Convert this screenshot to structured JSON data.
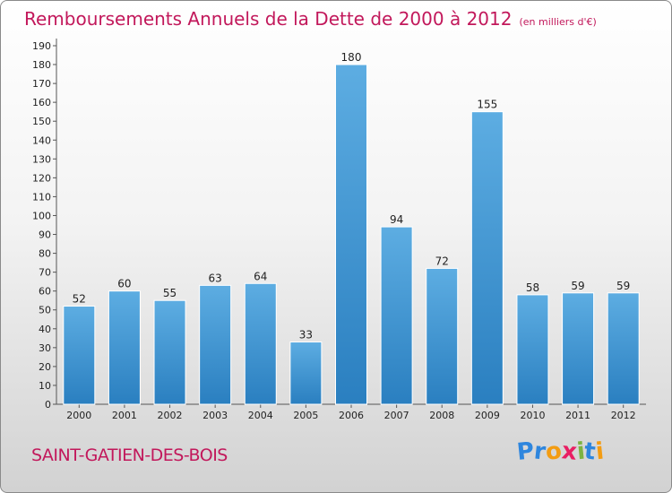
{
  "chart_data": {
    "type": "bar",
    "title": "Remboursements Annuels de la Dette de 2000 à 2012",
    "subtitle": "(en milliers d'€)",
    "categories": [
      "2000",
      "2001",
      "2002",
      "2003",
      "2004",
      "2005",
      "2006",
      "2007",
      "2008",
      "2009",
      "2010",
      "2011",
      "2012"
    ],
    "values": [
      52,
      60,
      55,
      63,
      64,
      33,
      180,
      94,
      72,
      155,
      58,
      59,
      59
    ],
    "ylim": [
      0,
      190
    ],
    "ytick_step": 10,
    "grid": false,
    "bar_color_top": "#5dade2",
    "bar_color_bottom": "#2a7fc0"
  },
  "footer": {
    "commune": "SAINT-GATIEN-DES-BOIS",
    "logo_letters": [
      {
        "char": "P",
        "color": "#2e86de"
      },
      {
        "char": "r",
        "color": "#2e86de"
      },
      {
        "char": "o",
        "color": "#f39c12"
      },
      {
        "char": "x",
        "color": "#e91e63"
      },
      {
        "char": "i",
        "color": "#7cb342"
      },
      {
        "char": "t",
        "color": "#2e86de"
      },
      {
        "char": "i",
        "color": "#f39c12"
      }
    ]
  }
}
